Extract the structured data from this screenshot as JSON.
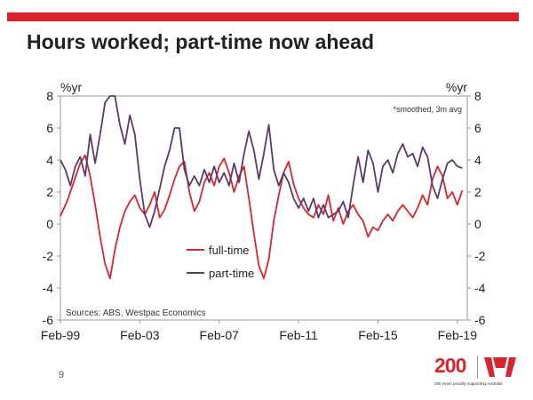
{
  "slide": {
    "title": "Hours worked; part-time now ahead",
    "page_number": "9",
    "logo_text": "200",
    "logo_tagline": "200 years proudly supporting Australia",
    "logo_icon": "westpac-w-icon",
    "accent_color": "#d9262e"
  },
  "chart_data": {
    "type": "line",
    "y_left_label": "%yr",
    "y_right_label": "%yr",
    "note": "*smoothed, 3m avg",
    "source": "Sources: ABS, Westpac Economics",
    "ylim": [
      -6,
      8
    ],
    "yticks": [
      "8",
      "6",
      "4",
      "2",
      "0",
      "-2",
      "-4",
      "-6"
    ],
    "xlim": [
      "1999-02",
      "2019-08"
    ],
    "xticks": [
      {
        "date": "1999-02",
        "label": "Feb-99"
      },
      {
        "date": "2003-02",
        "label": "Feb-03"
      },
      {
        "date": "2007-02",
        "label": "Feb-07"
      },
      {
        "date": "2011-02",
        "label": "Feb-11"
      },
      {
        "date": "2015-02",
        "label": "Feb-15"
      },
      {
        "date": "2019-02",
        "label": "Feb-19"
      }
    ],
    "grid": false,
    "legend_position": "center-left",
    "series": [
      {
        "name": "full-time",
        "color": "#d9262e",
        "points": [
          [
            "1999-02",
            0.5
          ],
          [
            "1999-06",
            1.4
          ],
          [
            "1999-10",
            2.6
          ],
          [
            "2000-02",
            3.8
          ],
          [
            "2000-05",
            4.3
          ],
          [
            "2000-08",
            3.0
          ],
          [
            "2000-11",
            1.2
          ],
          [
            "2001-02",
            -0.8
          ],
          [
            "2001-05",
            -2.5
          ],
          [
            "2001-08",
            -3.4
          ],
          [
            "2001-11",
            -1.6
          ],
          [
            "2002-02",
            -0.2
          ],
          [
            "2002-05",
            0.8
          ],
          [
            "2002-08",
            1.4
          ],
          [
            "2002-11",
            1.8
          ],
          [
            "2003-02",
            1.0
          ],
          [
            "2003-05",
            0.6
          ],
          [
            "2003-08",
            1.2
          ],
          [
            "2003-11",
            2.0
          ],
          [
            "2004-02",
            0.4
          ],
          [
            "2004-05",
            0.9
          ],
          [
            "2004-08",
            1.8
          ],
          [
            "2004-11",
            2.8
          ],
          [
            "2005-02",
            3.6
          ],
          [
            "2005-05",
            3.9
          ],
          [
            "2005-08",
            2.0
          ],
          [
            "2005-11",
            0.8
          ],
          [
            "2006-02",
            1.4
          ],
          [
            "2006-05",
            2.6
          ],
          [
            "2006-08",
            3.2
          ],
          [
            "2006-11",
            2.4
          ],
          [
            "2007-02",
            3.6
          ],
          [
            "2007-05",
            4.1
          ],
          [
            "2007-08",
            3.2
          ],
          [
            "2007-11",
            2.0
          ],
          [
            "2008-02",
            3.0
          ],
          [
            "2008-05",
            3.6
          ],
          [
            "2008-08",
            1.6
          ],
          [
            "2008-11",
            -0.6
          ],
          [
            "2009-02",
            -2.6
          ],
          [
            "2009-05",
            -3.4
          ],
          [
            "2009-08",
            -2.2
          ],
          [
            "2009-11",
            0.2
          ],
          [
            "2010-02",
            1.8
          ],
          [
            "2010-05",
            3.2
          ],
          [
            "2010-08",
            3.9
          ],
          [
            "2010-11",
            2.5
          ],
          [
            "2011-02",
            1.6
          ],
          [
            "2011-05",
            1.0
          ],
          [
            "2011-08",
            0.6
          ],
          [
            "2011-11",
            0.4
          ],
          [
            "2012-02",
            1.2
          ],
          [
            "2012-05",
            0.6
          ],
          [
            "2012-08",
            1.8
          ],
          [
            "2012-11",
            0.2
          ],
          [
            "2013-02",
            1.0
          ],
          [
            "2013-05",
            0.0
          ],
          [
            "2013-08",
            0.8
          ],
          [
            "2013-11",
            1.2
          ],
          [
            "2014-02",
            0.6
          ],
          [
            "2014-05",
            0.2
          ],
          [
            "2014-08",
            -0.8
          ],
          [
            "2014-11",
            -0.2
          ],
          [
            "2015-02",
            -0.4
          ],
          [
            "2015-05",
            0.2
          ],
          [
            "2015-08",
            0.6
          ],
          [
            "2015-11",
            0.2
          ],
          [
            "2016-02",
            0.8
          ],
          [
            "2016-05",
            1.2
          ],
          [
            "2016-08",
            0.8
          ],
          [
            "2016-11",
            0.4
          ],
          [
            "2017-02",
            1.0
          ],
          [
            "2017-05",
            1.8
          ],
          [
            "2017-08",
            1.2
          ],
          [
            "2017-11",
            2.8
          ],
          [
            "2018-02",
            3.6
          ],
          [
            "2018-05",
            3.0
          ],
          [
            "2018-08",
            1.6
          ],
          [
            "2018-11",
            2.0
          ],
          [
            "2019-02",
            1.2
          ],
          [
            "2019-05",
            2.1
          ]
        ]
      },
      {
        "name": "part-time",
        "color": "#5a3a6b",
        "points": [
          [
            "1999-02",
            4.0
          ],
          [
            "1999-05",
            3.4
          ],
          [
            "1999-08",
            2.4
          ],
          [
            "1999-11",
            3.6
          ],
          [
            "2000-02",
            4.2
          ],
          [
            "2000-05",
            3.0
          ],
          [
            "2000-08",
            5.6
          ],
          [
            "2000-11",
            3.8
          ],
          [
            "2001-02",
            5.6
          ],
          [
            "2001-05",
            7.6
          ],
          [
            "2001-08",
            8.0
          ],
          [
            "2001-11",
            8.0
          ],
          [
            "2002-02",
            6.2
          ],
          [
            "2002-05",
            5.0
          ],
          [
            "2002-08",
            6.8
          ],
          [
            "2002-11",
            5.6
          ],
          [
            "2003-02",
            2.8
          ],
          [
            "2003-05",
            0.6
          ],
          [
            "2003-08",
            -0.2
          ],
          [
            "2003-11",
            0.8
          ],
          [
            "2004-02",
            2.2
          ],
          [
            "2004-05",
            3.6
          ],
          [
            "2004-08",
            4.6
          ],
          [
            "2004-11",
            6.0
          ],
          [
            "2005-02",
            6.0
          ],
          [
            "2005-05",
            3.4
          ],
          [
            "2005-08",
            2.4
          ],
          [
            "2005-11",
            3.0
          ],
          [
            "2006-02",
            2.4
          ],
          [
            "2006-05",
            3.4
          ],
          [
            "2006-08",
            2.6
          ],
          [
            "2006-11",
            3.6
          ],
          [
            "2007-02",
            2.6
          ],
          [
            "2007-05",
            3.2
          ],
          [
            "2007-08",
            2.4
          ],
          [
            "2007-11",
            3.8
          ],
          [
            "2008-02",
            2.6
          ],
          [
            "2008-05",
            4.4
          ],
          [
            "2008-08",
            5.8
          ],
          [
            "2008-11",
            4.6
          ],
          [
            "2009-02",
            2.8
          ],
          [
            "2009-05",
            4.4
          ],
          [
            "2009-08",
            6.2
          ],
          [
            "2009-11",
            3.4
          ],
          [
            "2010-02",
            2.4
          ],
          [
            "2010-05",
            3.2
          ],
          [
            "2010-08",
            2.6
          ],
          [
            "2010-11",
            1.6
          ],
          [
            "2011-02",
            1.0
          ],
          [
            "2011-05",
            1.6
          ],
          [
            "2011-08",
            0.8
          ],
          [
            "2011-11",
            1.6
          ],
          [
            "2012-02",
            0.4
          ],
          [
            "2012-05",
            1.2
          ],
          [
            "2012-08",
            0.4
          ],
          [
            "2012-11",
            0.6
          ],
          [
            "2013-02",
            0.8
          ],
          [
            "2013-05",
            1.4
          ],
          [
            "2013-08",
            0.4
          ],
          [
            "2013-11",
            2.4
          ],
          [
            "2014-02",
            4.2
          ],
          [
            "2014-05",
            2.6
          ],
          [
            "2014-08",
            4.6
          ],
          [
            "2014-11",
            3.8
          ],
          [
            "2015-02",
            2.0
          ],
          [
            "2015-05",
            3.6
          ],
          [
            "2015-08",
            4.0
          ],
          [
            "2015-11",
            3.2
          ],
          [
            "2016-02",
            4.4
          ],
          [
            "2016-05",
            5.0
          ],
          [
            "2016-08",
            4.2
          ],
          [
            "2016-11",
            4.4
          ],
          [
            "2017-02",
            3.6
          ],
          [
            "2017-05",
            4.8
          ],
          [
            "2017-08",
            4.2
          ],
          [
            "2017-11",
            2.4
          ],
          [
            "2018-02",
            1.6
          ],
          [
            "2018-05",
            2.8
          ],
          [
            "2018-08",
            3.8
          ],
          [
            "2018-11",
            4.0
          ],
          [
            "2019-02",
            3.6
          ],
          [
            "2019-05",
            3.5
          ]
        ]
      }
    ]
  }
}
